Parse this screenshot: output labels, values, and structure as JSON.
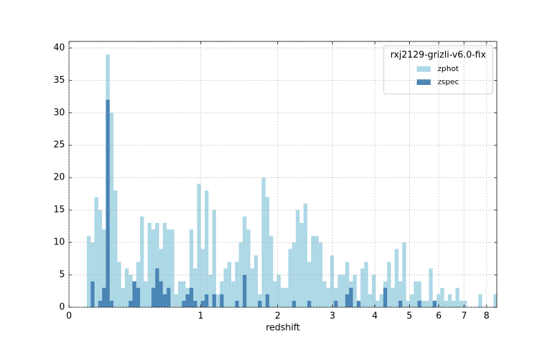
{
  "chart_data": {
    "type": "histogram",
    "xlabel": "redshift",
    "legend_title": "rxj2129-grizli-v6.0-fix",
    "legend": "upper right",
    "grid": true,
    "xscale": "log1p",
    "xlim": [
      0,
      8.5
    ],
    "ylim": [
      0,
      41
    ],
    "xticks": [
      0,
      1,
      2,
      3,
      4,
      5,
      6,
      7,
      8
    ],
    "yticks": [
      0,
      5,
      10,
      15,
      20,
      25,
      30,
      35,
      40
    ],
    "bins": [
      0.0986,
      0.1208,
      0.1434,
      0.1665,
      0.1901,
      0.2141,
      0.2386,
      0.2636,
      0.2892,
      0.3152,
      0.3418,
      0.3689,
      0.3965,
      0.4247,
      0.4535,
      0.4829,
      0.5128,
      0.5434,
      0.5746,
      0.6064,
      0.6389,
      0.672,
      0.7058,
      0.7402,
      0.7754,
      0.8112,
      0.8478,
      0.8852,
      0.9232,
      0.9621,
      1.0017,
      1.0422,
      1.0834,
      1.1255,
      1.1684,
      1.2122,
      1.2569,
      1.3025,
      1.349,
      1.3965,
      1.4449,
      1.4943,
      1.5447,
      1.5961,
      1.6485,
      1.702,
      1.7566,
      1.8123,
      1.8691,
      1.9271,
      1.9862,
      2.0465,
      2.1081,
      2.1709,
      2.2349,
      2.3003,
      2.367,
      2.435,
      2.5044,
      2.5752,
      2.6474,
      2.7211,
      2.7962,
      2.8729,
      2.9512,
      3.031,
      3.1124,
      3.1955,
      3.2802,
      3.3667,
      3.4549,
      3.5449,
      3.6367,
      3.7304,
      3.8259,
      3.9234,
      4.0229,
      4.1244,
      4.2279,
      4.3335,
      4.4412,
      4.5511,
      4.6633,
      4.7777,
      4.8944,
      5.0135,
      5.135,
      5.2589,
      5.3853,
      5.5143,
      5.6459,
      5.7802,
      5.9171,
      6.0569,
      6.1994,
      6.3448,
      6.4932,
      6.6446,
      6.799,
      6.9566,
      7.1173,
      7.2813,
      7.4486,
      7.6192,
      7.7934,
      7.971,
      8.1522,
      8.3371,
      8.5257
    ],
    "series": [
      {
        "name": "zphot",
        "color": "#add8e6",
        "values": [
          11,
          10,
          17,
          15,
          12,
          39,
          30,
          18,
          7,
          3,
          6,
          5,
          4,
          7,
          14,
          4,
          13,
          12,
          13,
          9,
          13,
          12,
          12,
          2,
          4,
          4,
          3,
          12,
          6,
          19,
          9,
          18,
          5,
          15,
          2,
          4,
          6,
          7,
          4,
          7,
          10,
          14,
          12,
          6,
          8,
          2,
          20,
          17,
          11,
          4,
          5,
          3,
          3,
          9,
          10,
          15,
          13,
          16,
          7,
          11,
          11,
          10,
          4,
          3,
          8,
          3,
          5,
          5,
          7,
          4,
          5,
          1,
          6,
          7,
          2,
          5,
          1,
          2,
          4,
          7,
          3,
          9,
          4,
          10,
          1,
          2,
          4,
          4,
          1,
          1,
          6,
          1,
          2,
          3,
          1,
          2,
          1,
          3,
          1,
          1,
          0,
          0,
          0,
          2,
          0,
          0,
          0,
          2
        ]
      },
      {
        "name": "zspec",
        "color": "#4a85b5",
        "values": [
          0,
          4,
          0,
          1,
          3,
          32,
          1,
          0,
          0,
          0,
          0,
          1,
          4,
          3,
          0,
          0,
          0,
          3,
          6,
          4,
          2,
          3,
          0,
          0,
          0,
          1,
          2,
          3,
          1,
          0,
          1,
          2,
          0,
          2,
          0,
          2,
          0,
          0,
          0,
          1,
          0,
          5,
          0,
          0,
          0,
          1,
          0,
          2,
          0,
          0,
          0,
          0,
          0,
          0,
          1,
          0,
          0,
          0,
          1,
          0,
          0,
          0,
          0,
          0,
          0,
          1,
          0,
          0,
          2,
          3,
          0,
          1,
          0,
          0,
          0,
          0,
          0,
          0,
          3,
          0,
          0,
          0,
          1,
          0,
          0,
          0,
          0,
          1,
          0,
          0,
          0,
          1,
          0,
          0,
          0,
          0,
          0,
          0,
          0,
          0,
          0,
          0,
          0,
          0,
          0,
          0,
          0,
          0
        ]
      }
    ]
  }
}
